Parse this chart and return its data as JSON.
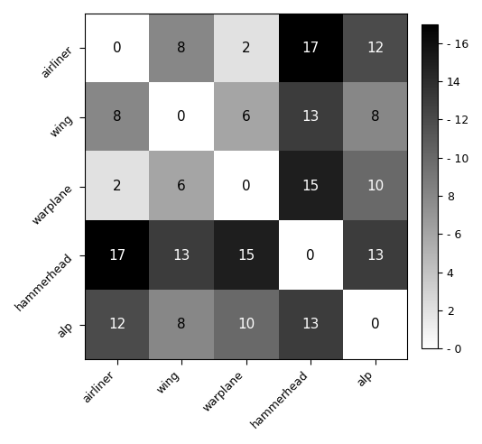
{
  "matrix": [
    [
      0,
      8,
      2,
      17,
      12
    ],
    [
      8,
      0,
      6,
      13,
      8
    ],
    [
      2,
      6,
      0,
      15,
      10
    ],
    [
      17,
      13,
      15,
      0,
      13
    ],
    [
      12,
      8,
      10,
      13,
      0
    ]
  ],
  "labels": [
    "airliner",
    "wing",
    "warplane",
    "hammerhead",
    "alp"
  ],
  "cmap": "gray_r",
  "vmin": 0,
  "vmax": 17,
  "colorbar_ticks": [
    0,
    2,
    4,
    6,
    8,
    10,
    12,
    14,
    16
  ],
  "text_color_threshold": 8,
  "fontsize_annot": 11,
  "fontsize_tick": 9,
  "figsize": [
    5.34,
    4.92
  ],
  "dpi": 100
}
